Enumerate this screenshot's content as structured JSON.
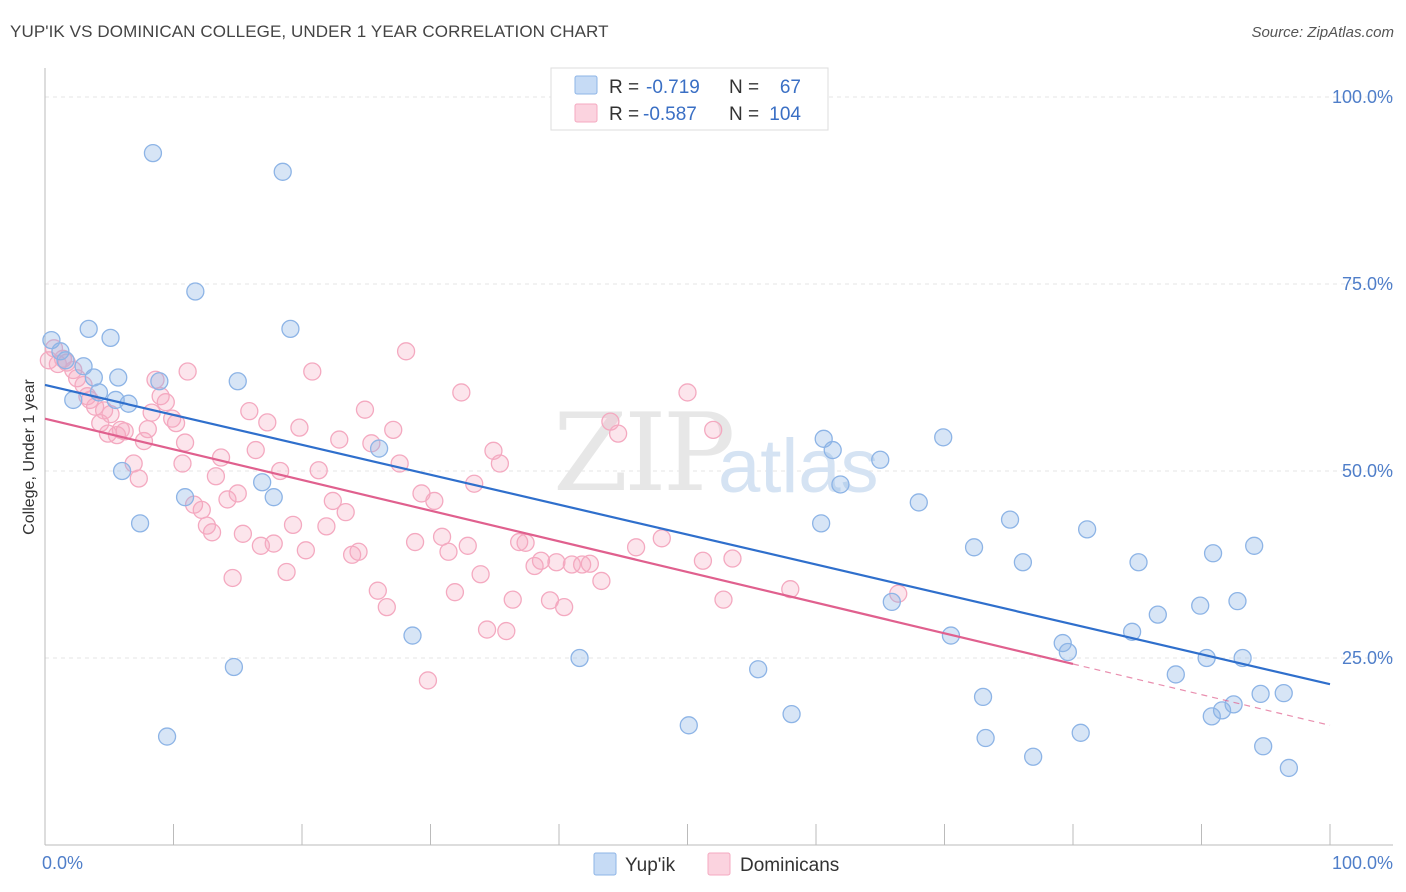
{
  "title": "YUP'IK VS DOMINICAN COLLEGE, UNDER 1 YEAR CORRELATION CHART",
  "source": "Source: ZipAtlas.com",
  "watermark": {
    "zip": "ZIP",
    "atlas": "atlas"
  },
  "chart_data": {
    "type": "scatter",
    "ylabel": "College, Under 1 year",
    "xlim": [
      0,
      100
    ],
    "ylim": [
      0,
      100
    ],
    "x_tick_labels": [
      "0.0%",
      "100.0%"
    ],
    "y_tick_labels": [
      {
        "value": 100,
        "label": "100.0%"
      },
      {
        "value": 75,
        "label": "75.0%"
      },
      {
        "value": 50,
        "label": "50.0%"
      },
      {
        "value": 25,
        "label": "25.0%"
      }
    ],
    "grid": true,
    "legend_placement": "top-center",
    "series": [
      {
        "name": "Yup'ik",
        "color": "#8db4e6",
        "line_color": "#2f6fcc",
        "R": "-0.719",
        "N": "67",
        "r_label": "R =",
        "n_label": "N =",
        "trend": {
          "x0": 0,
          "y0": 61.5,
          "x1": 100,
          "y1": 21.5
        },
        "points": [
          [
            0.5,
            67.5
          ],
          [
            1.2,
            66
          ],
          [
            1.6,
            64.8
          ],
          [
            2.2,
            59.5
          ],
          [
            3.0,
            64
          ],
          [
            3.4,
            69
          ],
          [
            3.8,
            62.5
          ],
          [
            4.2,
            60.5
          ],
          [
            5.1,
            67.8
          ],
          [
            5.7,
            62.5
          ],
          [
            6.5,
            59
          ],
          [
            5.5,
            59.5
          ],
          [
            6.0,
            50
          ],
          [
            7.4,
            43
          ],
          [
            8.4,
            92.5
          ],
          [
            8.9,
            62
          ],
          [
            9.5,
            14.5
          ],
          [
            10.9,
            46.5
          ],
          [
            11.7,
            74
          ],
          [
            15.0,
            62
          ],
          [
            14.7,
            23.8
          ],
          [
            16.9,
            48.5
          ],
          [
            17.8,
            46.5
          ],
          [
            18.5,
            90
          ],
          [
            19.1,
            69
          ],
          [
            26.0,
            53
          ],
          [
            28.6,
            28
          ],
          [
            41.6,
            25
          ],
          [
            50.1,
            16
          ],
          [
            55.5,
            23.5
          ],
          [
            58.1,
            17.5
          ],
          [
            60.6,
            54.3
          ],
          [
            60.4,
            43
          ],
          [
            61.3,
            52.8
          ],
          [
            61.9,
            48.2
          ],
          [
            65.0,
            51.5
          ],
          [
            65.9,
            32.5
          ],
          [
            68.0,
            45.8
          ],
          [
            70.5,
            28
          ],
          [
            69.9,
            54.5
          ],
          [
            72.3,
            39.8
          ],
          [
            73.0,
            19.8
          ],
          [
            73.2,
            14.3
          ],
          [
            75.1,
            43.5
          ],
          [
            76.1,
            37.8
          ],
          [
            76.9,
            11.8
          ],
          [
            79.2,
            27
          ],
          [
            79.6,
            25.8
          ],
          [
            80.6,
            15
          ],
          [
            81.1,
            42.2
          ],
          [
            84.6,
            28.5
          ],
          [
            85.1,
            37.8
          ],
          [
            86.6,
            30.8
          ],
          [
            88.0,
            22.8
          ],
          [
            89.9,
            32
          ],
          [
            90.4,
            25
          ],
          [
            90.8,
            17.2
          ],
          [
            90.9,
            39
          ],
          [
            91.6,
            18
          ],
          [
            92.5,
            18.8
          ],
          [
            92.8,
            32.6
          ],
          [
            93.2,
            25
          ],
          [
            94.1,
            40
          ],
          [
            94.6,
            20.2
          ],
          [
            94.8,
            13.2
          ],
          [
            96.4,
            20.3
          ],
          [
            96.8,
            10.3
          ]
        ]
      },
      {
        "name": "Dominicans",
        "color": "#f4a9c0",
        "line_color": "#e0608e",
        "R": "-0.587",
        "N": "104",
        "r_label": "R =",
        "n_label": "N =",
        "trend": {
          "x0": 0,
          "y0": 57,
          "x1": 80,
          "y1": 24.2
        },
        "trend_dash": {
          "x0": 80,
          "y0": 24.2,
          "x1": 100,
          "y1": 16
        },
        "points": [
          [
            0.3,
            64.8
          ],
          [
            0.7,
            66.4
          ],
          [
            1.0,
            64.3
          ],
          [
            1.4,
            65
          ],
          [
            1.7,
            64.5
          ],
          [
            2.2,
            63.5
          ],
          [
            2.5,
            62.4
          ],
          [
            3.0,
            61.5
          ],
          [
            3.3,
            60
          ],
          [
            3.5,
            59.5
          ],
          [
            3.9,
            58.6
          ],
          [
            4.3,
            56.4
          ],
          [
            4.6,
            58.1
          ],
          [
            4.9,
            55
          ],
          [
            5.1,
            57.6
          ],
          [
            5.6,
            54.8
          ],
          [
            5.9,
            55.5
          ],
          [
            6.2,
            55.3
          ],
          [
            6.9,
            51
          ],
          [
            7.3,
            49
          ],
          [
            7.7,
            54
          ],
          [
            8.0,
            55.6
          ],
          [
            8.3,
            57.8
          ],
          [
            8.6,
            62.2
          ],
          [
            9.0,
            60
          ],
          [
            9.4,
            59.2
          ],
          [
            9.9,
            57
          ],
          [
            10.2,
            56.4
          ],
          [
            10.7,
            51
          ],
          [
            11.1,
            63.3
          ],
          [
            10.9,
            53.8
          ],
          [
            11.6,
            45.5
          ],
          [
            12.2,
            44.8
          ],
          [
            12.6,
            42.7
          ],
          [
            13.0,
            41.8
          ],
          [
            13.3,
            49.3
          ],
          [
            13.7,
            51.8
          ],
          [
            14.2,
            46.2
          ],
          [
            14.6,
            35.7
          ],
          [
            15.0,
            47
          ],
          [
            15.4,
            41.6
          ],
          [
            15.9,
            58
          ],
          [
            16.4,
            52.8
          ],
          [
            16.8,
            40
          ],
          [
            17.3,
            56.5
          ],
          [
            17.8,
            40.3
          ],
          [
            18.3,
            50
          ],
          [
            18.8,
            36.5
          ],
          [
            19.3,
            42.8
          ],
          [
            19.8,
            55.8
          ],
          [
            20.3,
            39.4
          ],
          [
            20.8,
            63.3
          ],
          [
            21.3,
            50.1
          ],
          [
            21.9,
            42.6
          ],
          [
            22.4,
            46
          ],
          [
            22.9,
            54.2
          ],
          [
            23.4,
            44.5
          ],
          [
            23.9,
            38.8
          ],
          [
            24.4,
            39.2
          ],
          [
            24.9,
            58.2
          ],
          [
            25.4,
            53.7
          ],
          [
            25.9,
            34
          ],
          [
            26.6,
            31.8
          ],
          [
            27.1,
            55.5
          ],
          [
            27.6,
            51
          ],
          [
            28.1,
            66
          ],
          [
            28.8,
            40.5
          ],
          [
            29.3,
            47
          ],
          [
            29.8,
            22
          ],
          [
            30.3,
            46
          ],
          [
            30.9,
            41.2
          ],
          [
            31.4,
            39.2
          ],
          [
            31.9,
            33.8
          ],
          [
            32.4,
            60.5
          ],
          [
            32.9,
            40
          ],
          [
            33.4,
            48.3
          ],
          [
            33.9,
            36.2
          ],
          [
            34.4,
            28.8
          ],
          [
            34.9,
            52.7
          ],
          [
            35.4,
            51
          ],
          [
            35.9,
            28.6
          ],
          [
            36.4,
            32.8
          ],
          [
            36.9,
            40.5
          ],
          [
            37.4,
            40.4
          ],
          [
            38.1,
            37.3
          ],
          [
            38.6,
            38
          ],
          [
            39.3,
            32.7
          ],
          [
            39.8,
            37.8
          ],
          [
            40.4,
            31.8
          ],
          [
            41.0,
            37.5
          ],
          [
            41.8,
            37.5
          ],
          [
            42.4,
            37.6
          ],
          [
            43.3,
            35.3
          ],
          [
            44.0,
            56.6
          ],
          [
            44.6,
            55
          ],
          [
            46.0,
            39.8
          ],
          [
            48.0,
            41
          ],
          [
            50.0,
            60.5
          ],
          [
            51.2,
            38
          ],
          [
            52.0,
            55.5
          ],
          [
            52.8,
            32.8
          ],
          [
            53.5,
            38.3
          ],
          [
            58.0,
            34.2
          ],
          [
            66.4,
            33.6
          ]
        ]
      }
    ]
  }
}
